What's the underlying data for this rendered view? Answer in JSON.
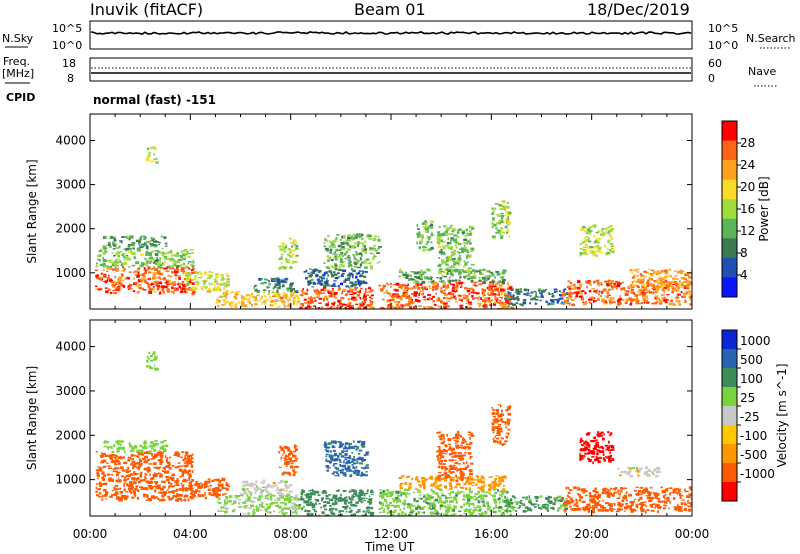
{
  "header": {
    "station": "Inuvik (fitACF)",
    "beam": "Beam 01",
    "date": "18/Dec/2019"
  },
  "strips": {
    "nsky_label": "N.Sky",
    "nsearch_label": "N.Search",
    "nsky_ticks": [
      "10^5",
      "10^0"
    ],
    "nsearch_ticks": [
      "10^5",
      "10^0"
    ],
    "freq_label_1": "Freq.",
    "freq_label_2": "[MHz]",
    "freq_ticks": [
      "18",
      "8"
    ],
    "nave_label": "Nave",
    "nave_ticks": [
      "60",
      "0"
    ],
    "cpid_label": "CPID",
    "cpid_text": "normal (fast) -151"
  },
  "colors": {
    "power_scale": [
      "#0a14ff",
      "#1e50b4",
      "#3c7850",
      "#5ab45a",
      "#a0dc3c",
      "#fadc28",
      "#ffa01e",
      "#ff6414",
      "#ff0000"
    ],
    "velocity_scale": [
      "#ff0000",
      "#ff5a00",
      "#ff9600",
      "#ffc800",
      "#c8c8c8",
      "#7ad23c",
      "#3c8c5a",
      "#2864b4",
      "#0a28d2"
    ]
  },
  "chart_data": [
    {
      "type": "heatmap",
      "title": "",
      "xlabel": "Time UT",
      "ylabel": "Slant Range [km]",
      "x_ticks": [
        "00:00",
        "04:00",
        "08:00",
        "12:00",
        "16:00",
        "20:00",
        "00:00"
      ],
      "x_range_hours": [
        0,
        24
      ],
      "y_ticks": [
        1000,
        2000,
        3000,
        4000
      ],
      "ylim": [
        180,
        4600
      ],
      "colorbar": {
        "label": "Power [dB]",
        "ticks": [
          4,
          8,
          12,
          16,
          20,
          24,
          28
        ],
        "range": [
          0,
          32
        ]
      },
      "patches": [
        {
          "t": [
            0.2,
            4.1
          ],
          "r": [
            550,
            1150
          ],
          "value": 27
        },
        {
          "t": [
            0.2,
            4.1
          ],
          "r": [
            1150,
            1550
          ],
          "value": 14
        },
        {
          "t": [
            0.5,
            3.0
          ],
          "r": [
            1550,
            1850
          ],
          "value": 11
        },
        {
          "t": [
            3.7,
            5.5
          ],
          "r": [
            600,
            1050
          ],
          "value": 18
        },
        {
          "t": [
            5.0,
            8.3
          ],
          "r": [
            250,
            600
          ],
          "value": 21
        },
        {
          "t": [
            6.5,
            8.2
          ],
          "r": [
            600,
            900
          ],
          "value": 9
        },
        {
          "t": [
            8.3,
            11.2
          ],
          "r": [
            200,
            700
          ],
          "value": 28
        },
        {
          "t": [
            8.5,
            11.0
          ],
          "r": [
            700,
            1100
          ],
          "value": 7
        },
        {
          "t": [
            7.5,
            8.2
          ],
          "r": [
            1100,
            1800
          ],
          "value": 16
        },
        {
          "t": [
            9.3,
            11.5
          ],
          "r": [
            1100,
            1900
          ],
          "value": 13
        },
        {
          "t": [
            11.5,
            16.8
          ],
          "r": [
            200,
            800
          ],
          "value": 27
        },
        {
          "t": [
            12.3,
            16.5
          ],
          "r": [
            800,
            1100
          ],
          "value": 12
        },
        {
          "t": [
            13.8,
            15.2
          ],
          "r": [
            1000,
            2100
          ],
          "value": 14
        },
        {
          "t": [
            16.5,
            19.0
          ],
          "r": [
            300,
            650
          ],
          "value": 8
        },
        {
          "t": [
            18.8,
            24.0
          ],
          "r": [
            300,
            850
          ],
          "value": 26
        },
        {
          "t": [
            19.5,
            20.8
          ],
          "r": [
            1400,
            2100
          ],
          "value": 17
        },
        {
          "t": [
            21.5,
            24.0
          ],
          "r": [
            700,
            1100
          ],
          "value": 23
        },
        {
          "t": [
            16.0,
            16.7
          ],
          "r": [
            1800,
            2700
          ],
          "value": 15
        },
        {
          "t": [
            13.0,
            13.6
          ],
          "r": [
            1500,
            2200
          ],
          "value": 13
        },
        {
          "t": [
            2.2,
            2.6
          ],
          "r": [
            3500,
            3900
          ],
          "value": 17
        }
      ]
    },
    {
      "type": "heatmap",
      "title": "",
      "xlabel": "Time UT",
      "ylabel": "Slant Range [km]",
      "x_ticks": [
        "00:00",
        "04:00",
        "08:00",
        "12:00",
        "16:00",
        "20:00",
        "00:00"
      ],
      "x_range_hours": [
        0,
        24
      ],
      "y_ticks": [
        1000,
        2000,
        3000,
        4000
      ],
      "ylim": [
        180,
        4600
      ],
      "colorbar": {
        "label": "Velocity [m s^-1]",
        "ticks": [
          1000,
          500,
          100,
          25,
          -25,
          -100,
          -500,
          -1000
        ]
      },
      "patches": [
        {
          "t": [
            0.2,
            4.1
          ],
          "r": [
            550,
            1150
          ],
          "value": -150
        },
        {
          "t": [
            0.2,
            4.1
          ],
          "r": [
            1150,
            1650
          ],
          "value": -300
        },
        {
          "t": [
            0.5,
            3.0
          ],
          "r": [
            1650,
            1900
          ],
          "value": 60
        },
        {
          "t": [
            3.7,
            5.5
          ],
          "r": [
            600,
            1050
          ],
          "value": -200
        },
        {
          "t": [
            5.0,
            8.3
          ],
          "r": [
            250,
            700
          ],
          "value": 40
        },
        {
          "t": [
            6.0,
            8.0
          ],
          "r": [
            700,
            1000
          ],
          "value": 0
        },
        {
          "t": [
            8.3,
            11.2
          ],
          "r": [
            200,
            800
          ],
          "value": 150
        },
        {
          "t": [
            9.3,
            11.0
          ],
          "r": [
            1100,
            1900
          ],
          "value": 600
        },
        {
          "t": [
            7.5,
            8.2
          ],
          "r": [
            1100,
            1800
          ],
          "value": -150
        },
        {
          "t": [
            11.5,
            16.8
          ],
          "r": [
            200,
            800
          ],
          "value": 80
        },
        {
          "t": [
            12.3,
            16.5
          ],
          "r": [
            800,
            1100
          ],
          "value": -60
        },
        {
          "t": [
            13.8,
            15.2
          ],
          "r": [
            1000,
            2100
          ],
          "value": -150
        },
        {
          "t": [
            16.5,
            19.0
          ],
          "r": [
            300,
            650
          ],
          "value": 120
        },
        {
          "t": [
            18.8,
            24.0
          ],
          "r": [
            300,
            850
          ],
          "value": -200
        },
        {
          "t": [
            19.5,
            20.8
          ],
          "r": [
            1400,
            2100
          ],
          "value": -700
        },
        {
          "t": [
            21.0,
            22.8
          ],
          "r": [
            1100,
            1300
          ],
          "value": 0
        },
        {
          "t": [
            16.0,
            16.7
          ],
          "r": [
            1800,
            2700
          ],
          "value": -150
        },
        {
          "t": [
            2.2,
            2.6
          ],
          "r": [
            3500,
            3900
          ],
          "value": 60
        }
      ]
    }
  ]
}
